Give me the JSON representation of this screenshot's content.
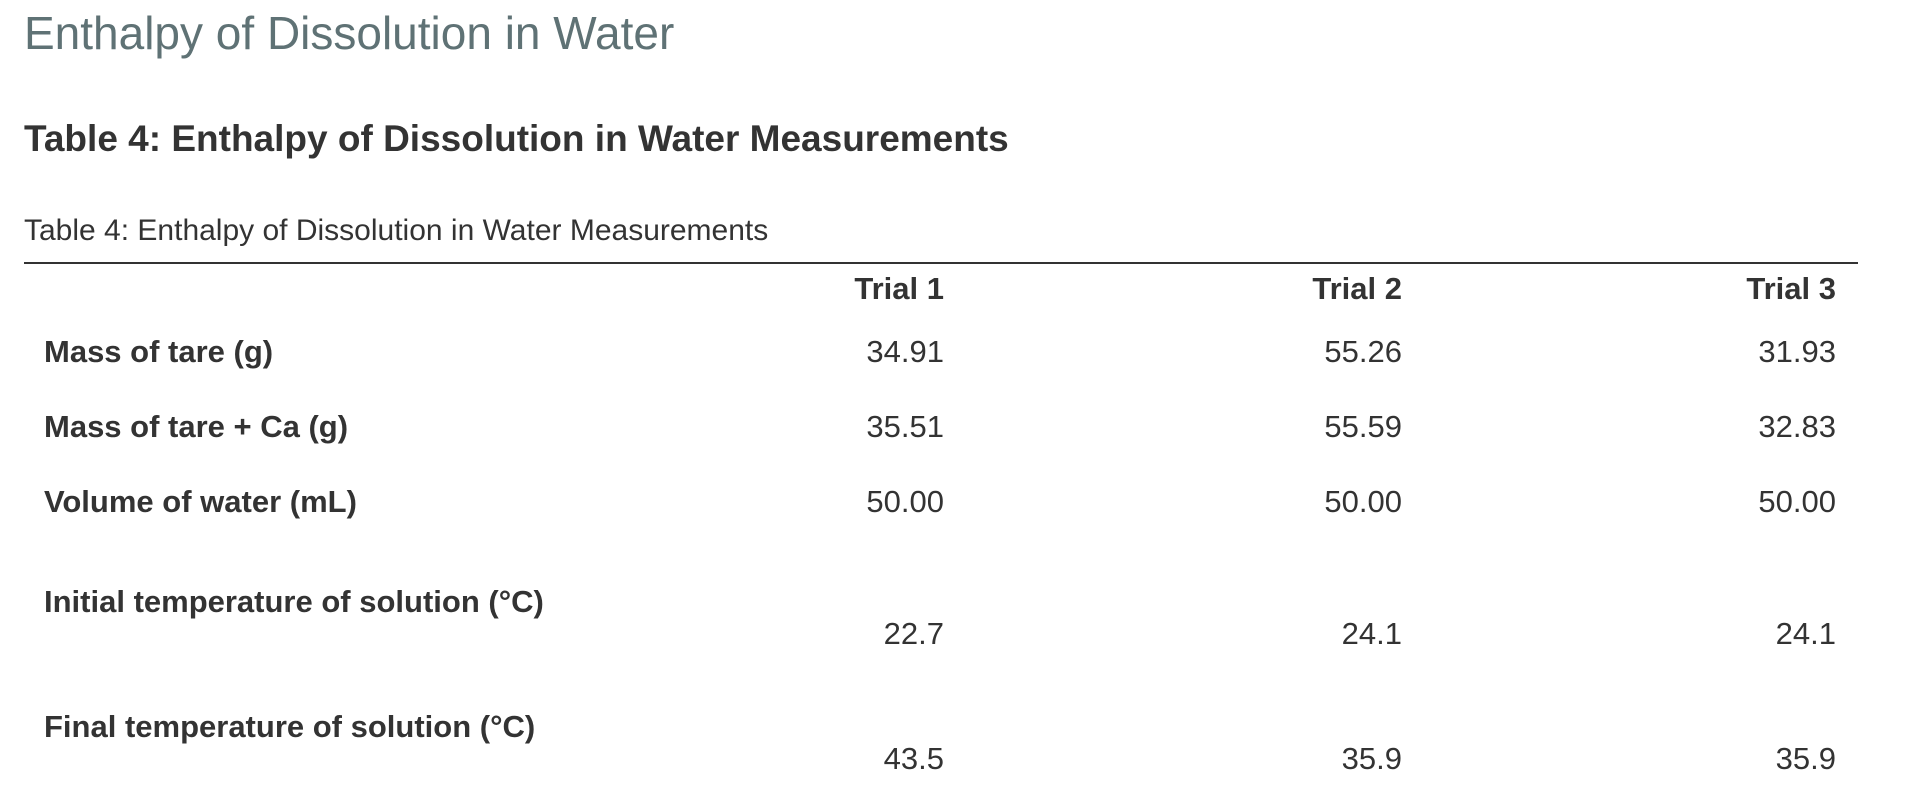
{
  "page": {
    "title": "Enthalpy of Dissolution in Water"
  },
  "section": {
    "heading": "Table 4: Enthalpy of Dissolution in Water Measurements"
  },
  "table": {
    "caption": "Table 4: Enthalpy of Dissolution in Water Measurements",
    "columns": [
      "",
      "Trial 1",
      "Trial 2",
      "Trial 3"
    ],
    "rows": [
      {
        "label": "Mass of tare (g)",
        "values": [
          "34.91",
          "55.26",
          "31.93"
        ]
      },
      {
        "label": "Mass of tare + Ca (g)",
        "values": [
          "35.51",
          "55.59",
          "32.83"
        ]
      },
      {
        "label": "Volume of water (mL)",
        "values": [
          "50.00",
          "50.00",
          "50.00"
        ]
      },
      {
        "label": "Initial temperature of solution (°C)",
        "values": [
          "22.7",
          "24.1",
          "24.1"
        ]
      },
      {
        "label": "Final temperature of solution (°C)",
        "values": [
          "43.5",
          "35.9",
          "35.9"
        ]
      }
    ]
  }
}
